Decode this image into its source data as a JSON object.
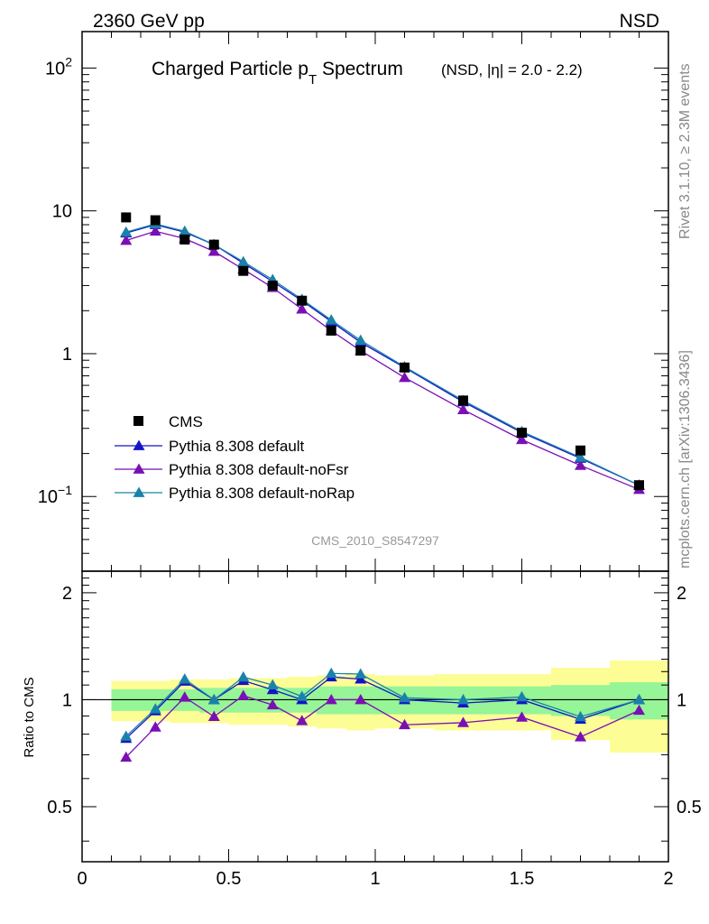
{
  "header": {
    "energy_label": "2360 GeV pp",
    "process_label": "NSD"
  },
  "side": {
    "rivet_label": "Rivet 3.1.10, ≥ 2.3M events",
    "source_label": "mcplots.cern.ch [arXiv:1306.3436]"
  },
  "chart_data": {
    "type": "scatter",
    "title_main": "Charged Particle p",
    "title_sub": "T",
    "title_rest": " Spectrum",
    "title_suffix": "(NSD, |η| = 2.0 - 2.2)",
    "analysis_label": "CMS_2010_S8547297",
    "xlim": [
      0,
      2
    ],
    "ylim_main": [
      0.03,
      180
    ],
    "y_scale_main": "log",
    "ylim_ratio": [
      0.35,
      2.3
    ],
    "ratio_ylabel": "Ratio to CMS",
    "x_ticks": [
      "0",
      "0.5",
      "1",
      "1.5",
      "2"
    ],
    "main_y_ticks": [
      {
        "base": "10",
        "exp": "2"
      },
      {
        "base": "10",
        "exp": ""
      },
      {
        "base": "1",
        "exp": ""
      },
      {
        "base": "10",
        "exp": "−1"
      }
    ],
    "ratio_y_ticks": [
      "2",
      "1",
      "0.5"
    ],
    "legend_position": "bottom-left",
    "x": [
      0.15,
      0.25,
      0.35,
      0.45,
      0.55,
      0.65,
      0.75,
      0.85,
      0.95,
      1.1,
      1.3,
      1.5,
      1.7,
      1.9
    ],
    "x_bins": [
      [
        0.1,
        0.2
      ],
      [
        0.2,
        0.3
      ],
      [
        0.3,
        0.4
      ],
      [
        0.4,
        0.5
      ],
      [
        0.5,
        0.6
      ],
      [
        0.6,
        0.7
      ],
      [
        0.7,
        0.8
      ],
      [
        0.8,
        0.9
      ],
      [
        0.9,
        1.0
      ],
      [
        1.0,
        1.2
      ],
      [
        1.2,
        1.4
      ],
      [
        1.4,
        1.6
      ],
      [
        1.6,
        1.8
      ],
      [
        1.8,
        2.0
      ]
    ],
    "data": {
      "name": "CMS",
      "values": [
        9.0,
        8.6,
        6.3,
        5.8,
        3.8,
        3.0,
        2.35,
        1.45,
        1.05,
        0.8,
        0.47,
        0.28,
        0.21,
        0.12
      ],
      "band_stat_rel": [
        0.07,
        0.07,
        0.07,
        0.08,
        0.08,
        0.08,
        0.08,
        0.09,
        0.09,
        0.09,
        0.09,
        0.09,
        0.1,
        0.12
      ],
      "band_total_rel": [
        0.13,
        0.13,
        0.14,
        0.14,
        0.15,
        0.15,
        0.16,
        0.17,
        0.18,
        0.17,
        0.18,
        0.18,
        0.23,
        0.29
      ]
    },
    "series": [
      {
        "name": "Pythia 8.308 default",
        "color": "#1414c8",
        "values": [
          7.0,
          8.0,
          7.1,
          5.8,
          4.3,
          3.2,
          2.35,
          1.68,
          1.2,
          0.8,
          0.46,
          0.28,
          0.185,
          0.12
        ]
      },
      {
        "name": "Pythia 8.308 default-noFsr",
        "color": "#7a10b4",
        "values": [
          6.2,
          7.2,
          6.4,
          5.2,
          3.9,
          2.9,
          2.05,
          1.45,
          1.05,
          0.68,
          0.405,
          0.25,
          0.165,
          0.112
        ]
      },
      {
        "name": "Pythia 8.308 default-noRap",
        "color": "#1a82aa",
        "values": [
          7.1,
          8.1,
          7.2,
          5.8,
          4.4,
          3.3,
          2.4,
          1.72,
          1.24,
          0.81,
          0.47,
          0.285,
          0.188,
          0.12
        ]
      }
    ],
    "colors": {
      "data": "#000000",
      "band_stat": "#96f596",
      "band_total": "#fdfd96",
      "analysis_label": "#999999",
      "side_text": "#888888"
    }
  }
}
